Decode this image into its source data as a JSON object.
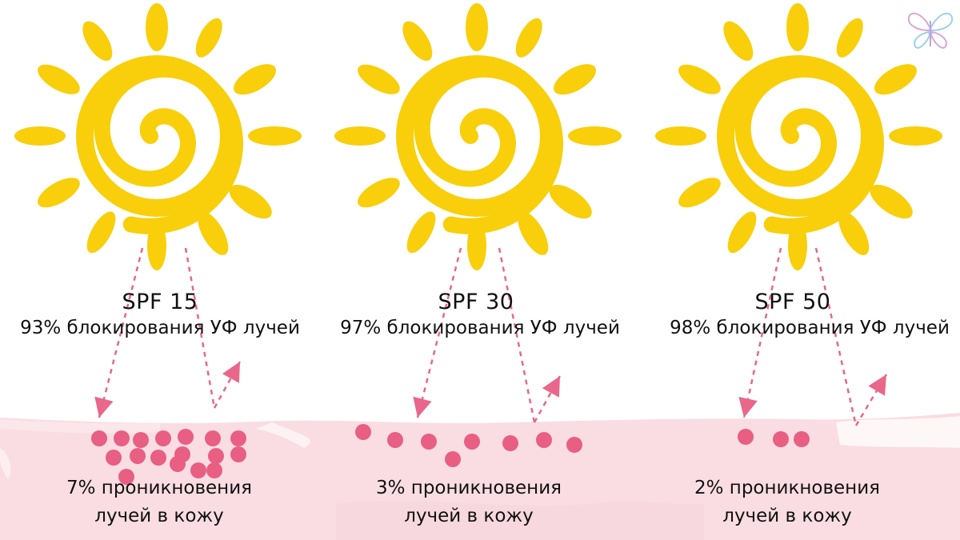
{
  "panels": [
    {
      "spf_label": "SPF 15",
      "blocking_text": "93% блокирования УФ лучей",
      "penetration_line1": "7% проникновения",
      "penetration_line2": "лучей в кожу",
      "penetrated_dots": 17
    },
    {
      "spf_label": "SPF 30",
      "blocking_text": "97% блокирования УФ лучей",
      "penetration_line1": "3% проникновения",
      "penetration_line2": "лучей в кожу",
      "penetrated_dots": 8
    },
    {
      "spf_label": "SPF 50",
      "blocking_text": "98% блокирования УФ лучей",
      "penetration_line1": "2% проникновения",
      "penetration_line2": "лучей в кожу",
      "penetrated_dots": 3
    }
  ],
  "colors": {
    "sun": "#f8cf0a",
    "ray_arrow": "#e8678b",
    "dot": "#e85f83",
    "skin": "#f9dde3",
    "skin_light": "#fdeef1",
    "text": "#111111"
  },
  "icons": {
    "sun": "sun-icon",
    "logo": "butterfly-logo-icon"
  }
}
